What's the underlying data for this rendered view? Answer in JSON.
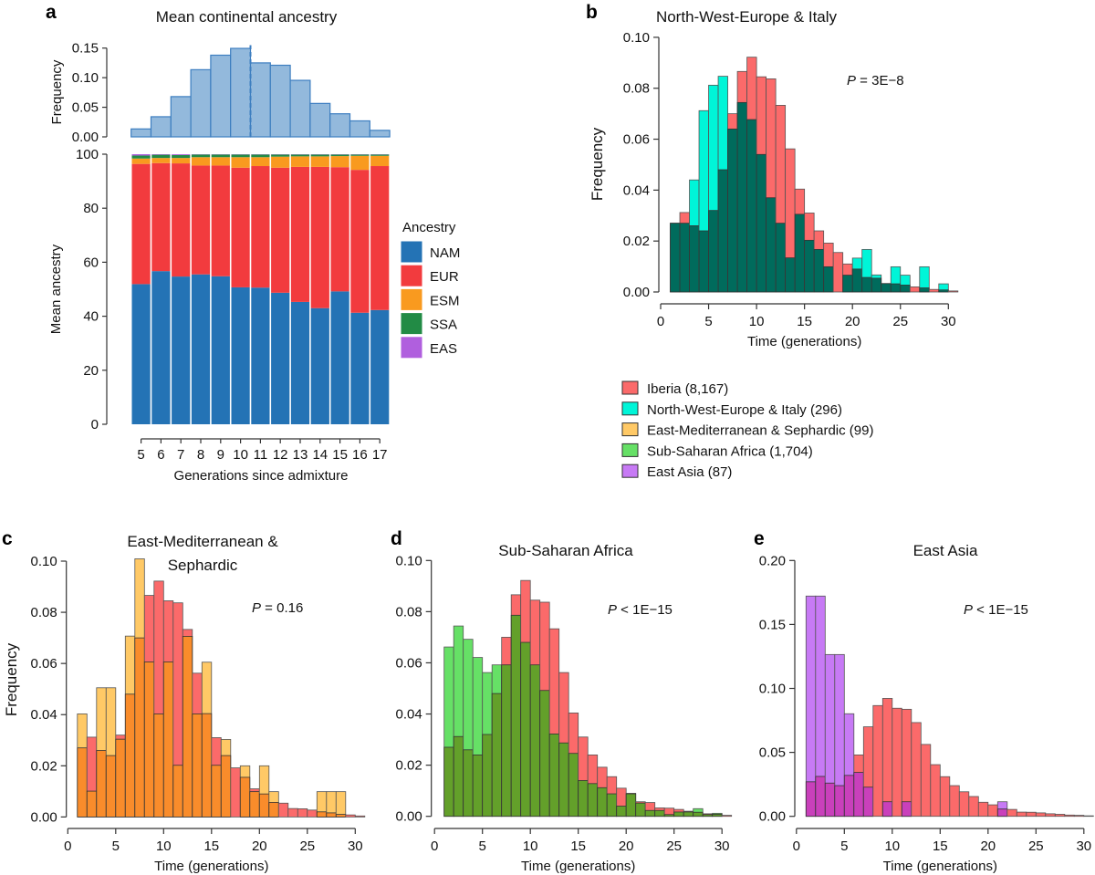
{
  "chart_data": [
    {
      "panel": "a",
      "type": "bar",
      "title": "Mean continental ancestry",
      "histogram": {
        "ylabel": "Frequency",
        "ylim": [
          0,
          0.15
        ],
        "yticks": [
          "0.00",
          "0.05",
          "0.10",
          "0.15"
        ],
        "categories": [
          5,
          6,
          7,
          8,
          9,
          10,
          11,
          12,
          13,
          14,
          15,
          16,
          17
        ],
        "values": [
          0.0134,
          0.034,
          0.068,
          0.1135,
          0.138,
          0.1495,
          0.125,
          0.121,
          0.0955,
          0.0565,
          0.039,
          0.027,
          0.011
        ],
        "dashed_line_at": 10.5,
        "color": "#93b9dc",
        "edge_color": "#3d7ec0"
      },
      "stacked": {
        "type": "stacked-bar",
        "xlabel": "Generations since admixture",
        "ylabel": "Mean ancestry",
        "ylim": [
          0,
          100
        ],
        "yticks": [
          "0",
          "20",
          "40",
          "60",
          "80",
          "100"
        ],
        "categories": [
          "5",
          "6",
          "7",
          "8",
          "9",
          "10",
          "11",
          "12",
          "13",
          "14",
          "15",
          "16",
          "17"
        ],
        "series": [
          {
            "name": "NAM",
            "color": "#2473b5",
            "values": [
              51.9,
              56.7,
              54.7,
              55.5,
              54.8,
              50.7,
              50.6,
              48.7,
              45.3,
              43.0,
              49.2,
              41.3,
              42.3
            ]
          },
          {
            "name": "EUR",
            "color": "#f23b3e",
            "values": [
              44.5,
              40.0,
              41.9,
              40.3,
              41.0,
              44.3,
              45.0,
              46.3,
              50.0,
              52.3,
              46.0,
              52.9,
              53.3
            ]
          },
          {
            "name": "ESM",
            "color": "#f99a1f",
            "values": [
              2.0,
              1.9,
              2.0,
              3.1,
              3.1,
              3.9,
              3.3,
              4.1,
              3.9,
              3.9,
              4.1,
              5.2,
              3.8
            ]
          },
          {
            "name": "SSA",
            "color": "#228b45",
            "values": [
              1.1,
              1.2,
              1.1,
              1.0,
              1.0,
              1.0,
              1.0,
              0.8,
              0.7,
              0.7,
              0.6,
              0.5,
              0.5
            ]
          },
          {
            "name": "EAS",
            "color": "#b05fde",
            "values": [
              0.5,
              0.2,
              0.3,
              0.1,
              0.1,
              0.1,
              0.1,
              0.1,
              0.1,
              0.1,
              0.1,
              0.1,
              0.1
            ]
          }
        ],
        "legend_title": "Ancestry",
        "legend_position": "right"
      }
    },
    {
      "panel": "b",
      "type": "bar",
      "title": "North-West-Europe & Italy",
      "annotation": {
        "p": "P",
        "rest": " = 3E−8"
      },
      "xlabel": "Time (generations)",
      "ylabel": "Frequency",
      "xlim": [
        0,
        30
      ],
      "xticks": [
        "0",
        "5",
        "10",
        "15",
        "20",
        "25",
        "30"
      ],
      "ylim": [
        0,
        0.1
      ],
      "yticks": [
        "0.00",
        "0.02",
        "0.04",
        "0.06",
        "0.08",
        "0.10"
      ],
      "bin_start": 1,
      "series": [
        {
          "name": "Iberia",
          "color": "#fb6a6a",
          "values": [
            0.027,
            0.0312,
            0.026,
            0.024,
            0.032,
            0.048,
            0.07,
            0.0866,
            0.0922,
            0.0845,
            0.0837,
            0.0733,
            0.0562,
            0.0404,
            0.031,
            0.024,
            0.0192,
            0.0155,
            0.011,
            0.009,
            0.0057,
            0.0054,
            0.0033,
            0.0032,
            0.0027,
            0.002,
            0.0016,
            0.001,
            0.0008,
            0.0004
          ]
        },
        {
          "name": "North-West-Europe & Italy",
          "color": "#00f5d8",
          "overlap_color": "#006b5c",
          "values": [
            0.027,
            0.027,
            0.044,
            0.0712,
            0.0812,
            0.0847,
            0.064,
            0.0744,
            0.0677,
            0.054,
            0.037,
            0.027,
            0.0134,
            0.0305,
            0.0203,
            0.0167,
            0.0099,
            0,
            0.0066,
            0.0133,
            0.0167,
            0.0067,
            0.0033,
            0.0099,
            0.0066,
            0,
            0.0099,
            0,
            0.0032,
            0
          ]
        }
      ]
    },
    {
      "panel": "c",
      "type": "bar",
      "title": [
        "East-Mediterranean &",
        "Sephardic"
      ],
      "annotation": {
        "p": "P",
        "rest": " = 0.16"
      },
      "xlabel": "Time (generations)",
      "ylabel": "Frequency",
      "xlim": [
        0,
        30
      ],
      "xticks": [
        "0",
        "5",
        "10",
        "15",
        "20",
        "25",
        "30"
      ],
      "ylim": [
        0,
        0.1
      ],
      "yticks": [
        "0.00",
        "0.02",
        "0.04",
        "0.06",
        "0.08",
        "0.10"
      ],
      "bin_start": 1,
      "series": [
        {
          "name": "Iberia",
          "color": "#fb6a6a",
          "ref": true
        },
        {
          "name": "East-Mediterranean & Sephardic",
          "color": "#ffc966",
          "overlap_color": "#f98c2b",
          "values": [
            0.0403,
            0.0101,
            0.0505,
            0.0505,
            0.0304,
            0.0707,
            0.1009,
            0.0606,
            0.0403,
            0.0606,
            0.0202,
            0.0706,
            0.0403,
            0.0605,
            0.0202,
            0.0303,
            0,
            0.02,
            0.0099,
            0.02,
            0.0099,
            0,
            0,
            0,
            0,
            0.0099,
            0.0099,
            0.0099,
            0,
            0
          ]
        }
      ]
    },
    {
      "panel": "d",
      "type": "bar",
      "title": [
        "Sub-Saharan Africa"
      ],
      "annotation": {
        "p": "P",
        "rest": " < 1E−15"
      },
      "xlabel": "Time (generations)",
      "ylabel": "",
      "xlim": [
        0,
        30
      ],
      "xticks": [
        "0",
        "5",
        "10",
        "15",
        "20",
        "25",
        "30"
      ],
      "ylim": [
        0,
        0.1
      ],
      "yticks": [
        "0.00",
        "0.02",
        "0.04",
        "0.06",
        "0.08",
        "0.10"
      ],
      "bin_start": 1,
      "series": [
        {
          "name": "Iberia",
          "color": "#fb6a6a",
          "ref": true
        },
        {
          "name": "Sub-Saharan Africa",
          "color": "#66e066",
          "overlap_color": "#63a02a",
          "values": [
            0.0662,
            0.0744,
            0.0692,
            0.0621,
            0.0562,
            0.0592,
            0.0592,
            0.0786,
            0.068,
            0.0592,
            0.0492,
            0.0322,
            0.0287,
            0.0246,
            0.014,
            0.0128,
            0.0112,
            0.0088,
            0.004,
            0.0088,
            0.0052,
            0.0023,
            0.0023,
            0.0007,
            0.0017,
            0.0017,
            0.003,
            0.0007,
            0.0012,
            0
          ]
        }
      ]
    },
    {
      "panel": "e",
      "type": "bar",
      "title": [
        "East Asia"
      ],
      "annotation": {
        "p": "P",
        "rest": " < 1E−15"
      },
      "xlabel": "Time (generations)",
      "ylabel": "",
      "xlim": [
        0,
        30
      ],
      "xticks": [
        "0",
        "5",
        "10",
        "15",
        "20",
        "25",
        "30"
      ],
      "ylim": [
        0,
        0.2
      ],
      "yticks": [
        "0.00",
        "0.05",
        "0.10",
        "0.15",
        "0.20"
      ],
      "bin_start": 1,
      "series": [
        {
          "name": "Iberia",
          "color": "#fb6a6a",
          "ref": true
        },
        {
          "name": "East Asia",
          "color": "#c77af5",
          "overlap_color": "#c940bb",
          "values": [
            0.1722,
            0.1722,
            0.1265,
            0.1265,
            0.0802,
            0.0343,
            0.0228,
            0,
            0.0114,
            0,
            0.0114,
            0,
            0,
            0,
            0,
            0,
            0,
            0,
            0,
            0,
            0.0114,
            0,
            0,
            0,
            0,
            0,
            0,
            0,
            0,
            0
          ]
        }
      ]
    }
  ],
  "legend": {
    "position": "below panel b",
    "items": [
      {
        "label": "Iberia (8,167)",
        "color": "#fb6a6a"
      },
      {
        "label": "North-West-Europe & Italy (296)",
        "color": "#00f5d8"
      },
      {
        "label": "East-Mediterranean & Sephardic (99)",
        "color": "#ffc966"
      },
      {
        "label": "Sub-Saharan Africa (1,704)",
        "color": "#66e066"
      },
      {
        "label": "East Asia (87)",
        "color": "#c77af5"
      }
    ]
  }
}
